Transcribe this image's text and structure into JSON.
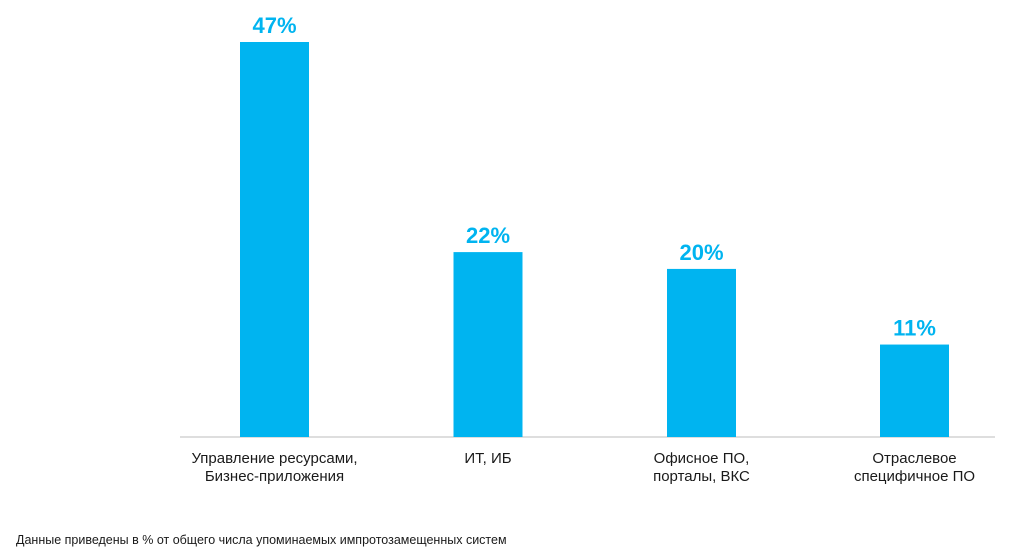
{
  "chart_data": {
    "type": "bar",
    "categories": [
      [
        "Управление ресурсами,",
        "Бизнес-приложения"
      ],
      [
        "ИТ, ИБ"
      ],
      [
        "Офисное ПО,",
        "порталы, ВКС"
      ],
      [
        "Отраслевое",
        "специфичное ПО"
      ]
    ],
    "values": [
      47,
      22,
      20,
      11
    ],
    "value_labels": [
      "47%",
      "22%",
      "20%",
      "11%"
    ],
    "title": "",
    "xlabel": "",
    "ylabel": "",
    "ylim": [
      0,
      47
    ],
    "grid": false,
    "bar_color": "#00b4f0"
  },
  "footnote": "Данные приведены в % от общего числа упоминаемых  импротозамещенных систем"
}
